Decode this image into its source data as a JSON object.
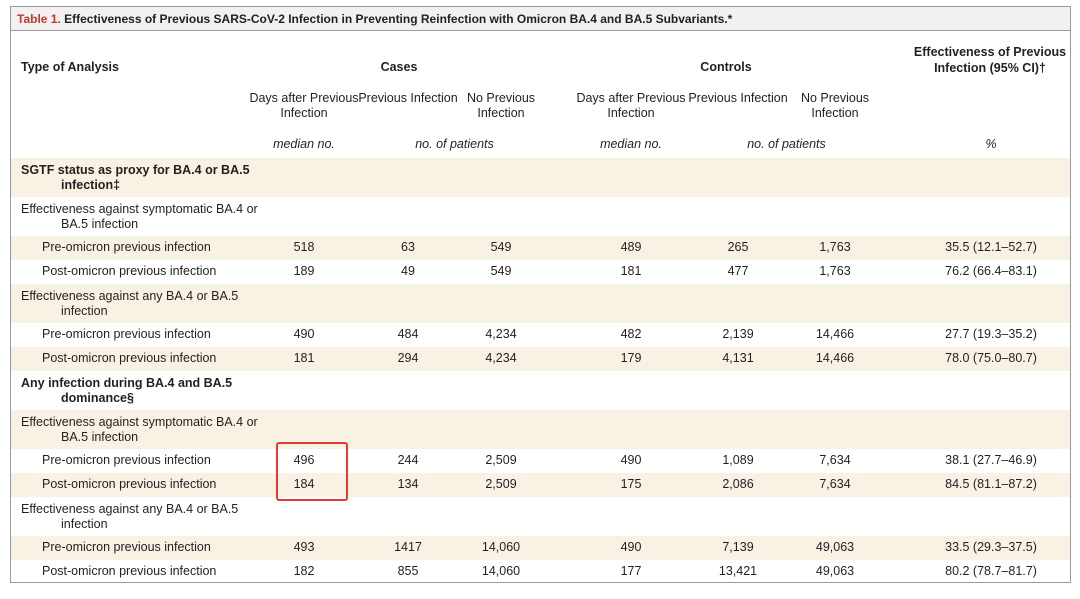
{
  "title": {
    "label": "Table 1.",
    "text": "Effectiveness of Previous SARS-CoV-2 Infection in Preventing Reinfection with Omicron BA.4 and BA.5 Subvariants.*"
  },
  "header": {
    "type": "Type of Analysis",
    "cases": "Cases",
    "controls": "Controls",
    "effectiveness": "Effectiveness of Previous Infection (95% CI)†"
  },
  "subheaders": [
    "Days after Previous Infection",
    "Previous Infection",
    "No Previous Infection",
    "Days after Previous Infection",
    "Previous Infection",
    "No Previous Infection"
  ],
  "units": [
    "median no.",
    "no. of patients",
    "median no.",
    "no. of patients",
    "%"
  ],
  "sections": [
    {
      "title": "SGTF status as proxy for BA.4 or BA.5 infection‡",
      "groups": [
        {
          "title": "Effectiveness against symptomatic BA.4 or BA.5 infection",
          "rows": [
            {
              "label": "Pre-omicron previous infection",
              "cells": [
                518,
                63,
                549,
                489,
                265,
                "1,763",
                "35.5 (12.1–52.7)"
              ]
            },
            {
              "label": "Post-omicron previous infection",
              "cells": [
                189,
                49,
                549,
                181,
                477,
                "1,763",
                "76.2 (66.4–83.1)"
              ]
            }
          ]
        },
        {
          "title": "Effectiveness against any BA.4 or BA.5 infection",
          "rows": [
            {
              "label": "Pre-omicron previous infection",
              "cells": [
                490,
                484,
                "4,234",
                482,
                "2,139",
                "14,466",
                "27.7 (19.3–35.2)"
              ]
            },
            {
              "label": "Post-omicron previous infection",
              "cells": [
                181,
                294,
                "4,234",
                179,
                "4,131",
                "14,466",
                "78.0 (75.0–80.7)"
              ]
            }
          ]
        }
      ]
    },
    {
      "title": "Any infection during BA.4 and BA.5 dominance§",
      "groups": [
        {
          "title": "Effectiveness against symptomatic BA.4 or BA.5 infection",
          "rows": [
            {
              "label": "Pre-omicron previous infection",
              "cells": [
                496,
                244,
                "2,509",
                490,
                "1,089",
                "7,634",
                "38.1 (27.7–46.9)"
              ]
            },
            {
              "label": "Post-omicron previous infection",
              "cells": [
                184,
                134,
                "2,509",
                175,
                "2,086",
                "7,634",
                "84.5 (81.1–87.2)"
              ]
            }
          ]
        },
        {
          "title": "Effectiveness against any BA.4 or BA.5 infection",
          "rows": [
            {
              "label": "Pre-omicron previous infection",
              "cells": [
                493,
                1417,
                "14,060",
                490,
                "7,139",
                "49,063",
                "33.5 (29.3–37.5)"
              ]
            },
            {
              "label": "Post-omicron previous infection",
              "cells": [
                182,
                855,
                "14,060",
                177,
                "13,421",
                "49,063",
                "80.2 (78.7–81.7)"
              ]
            }
          ]
        }
      ]
    }
  ]
}
